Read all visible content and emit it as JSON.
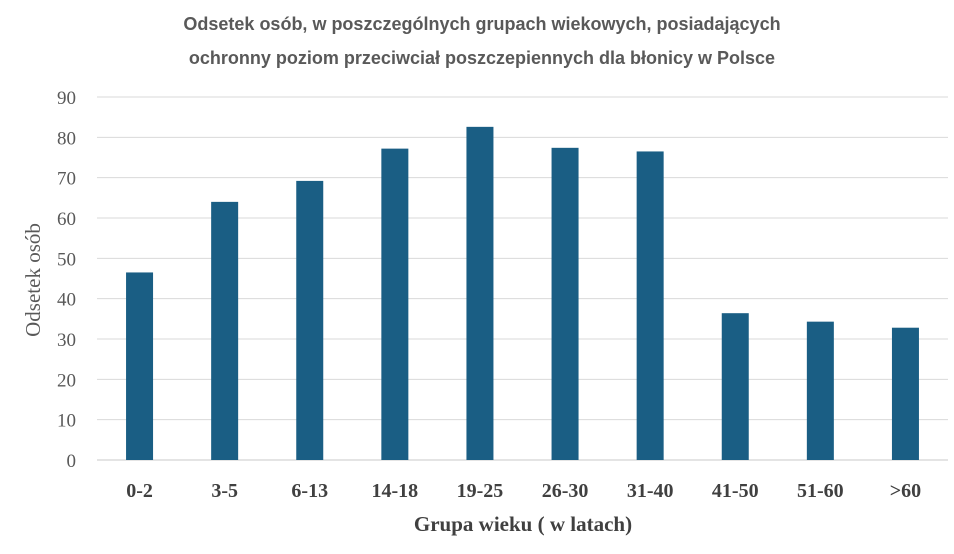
{
  "chart_data": {
    "type": "bar",
    "title_line1": "Odsetek osób, w poszczególnych grupach wiekowych, posiadających",
    "title_line2": "ochronny poziom przeciwciał poszczepiennych dla błonicy w Polsce",
    "xlabel": "Grupa wieku ( w latach)",
    "ylabel": "Odsetek osób",
    "categories": [
      "0-2",
      "3-5",
      "6-13",
      "14-18",
      "19-25",
      "26-30",
      "31-40",
      "41-50",
      "51-60",
      ">60"
    ],
    "values": [
      46.5,
      64,
      69.2,
      77.2,
      82.6,
      77.4,
      76.5,
      36.4,
      34.3,
      32.8
    ],
    "ylim": [
      0,
      90
    ],
    "yticks": [
      0,
      10,
      20,
      30,
      40,
      50,
      60,
      70,
      80,
      90
    ],
    "bar_color": "#1a5e84",
    "grid": true,
    "legend": "none"
  }
}
